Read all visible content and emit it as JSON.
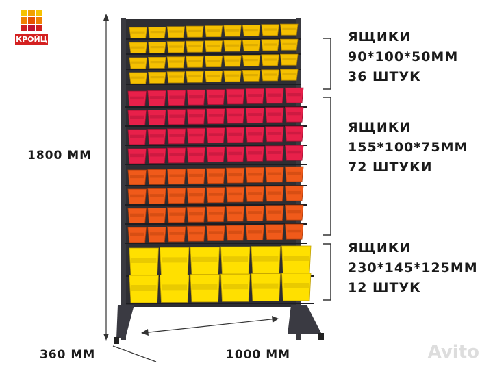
{
  "logo": {
    "text": "КРОЙЦ"
  },
  "dimensions": {
    "height": "1800 ММ",
    "depth": "360 ММ",
    "width": "1000 ММ"
  },
  "groups": [
    {
      "lines": [
        "ЯЩИКИ",
        "90*100*50ММ",
        "36 ШТУК"
      ]
    },
    {
      "lines": [
        "ЯЩИКИ",
        "155*100*75ММ",
        "72 ШТУКИ"
      ]
    },
    {
      "lines": [
        "ЯЩИКИ",
        "230*145*125ММ",
        "12 ШТУК"
      ]
    }
  ],
  "watermark": "Avito"
}
